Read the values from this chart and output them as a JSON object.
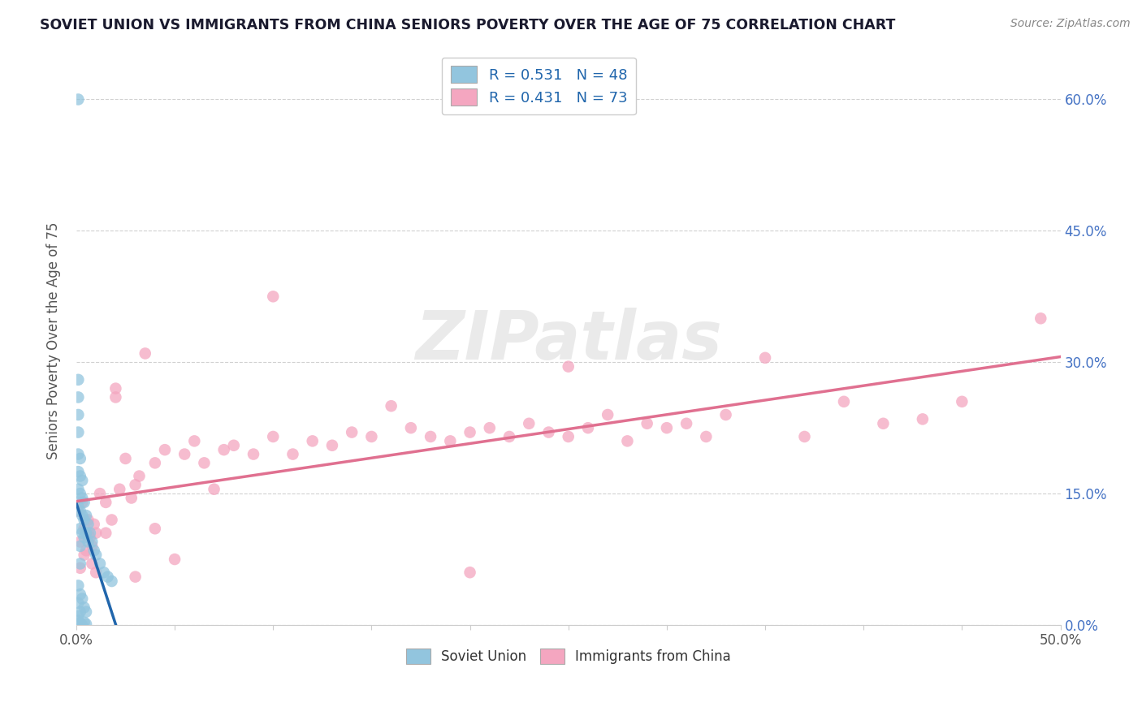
{
  "title": "SOVIET UNION VS IMMIGRANTS FROM CHINA SENIORS POVERTY OVER THE AGE OF 75 CORRELATION CHART",
  "source": "Source: ZipAtlas.com",
  "ylabel": "Seniors Poverty Over the Age of 75",
  "xlim": [
    0.0,
    0.5
  ],
  "ylim": [
    0.0,
    0.65
  ],
  "soviet_R": 0.531,
  "soviet_N": 48,
  "china_R": 0.431,
  "china_N": 73,
  "soviet_color": "#92c5de",
  "china_color": "#f4a6c0",
  "soviet_line_color": "#2166ac",
  "china_line_color": "#e07090",
  "background_color": "#ffffff",
  "soviet_x": [
    0.001,
    0.001,
    0.001,
    0.001,
    0.001,
    0.001,
    0.001,
    0.001,
    0.001,
    0.002,
    0.002,
    0.002,
    0.002,
    0.002,
    0.002,
    0.002,
    0.003,
    0.003,
    0.003,
    0.003,
    0.004,
    0.004,
    0.004,
    0.005,
    0.005,
    0.006,
    0.006,
    0.007,
    0.008,
    0.009,
    0.01,
    0.012,
    0.014,
    0.016,
    0.018,
    0.001,
    0.001,
    0.001,
    0.002,
    0.002,
    0.003,
    0.004,
    0.005,
    0.001,
    0.002,
    0.003,
    0.004,
    0.005
  ],
  "soviet_y": [
    0.6,
    0.28,
    0.26,
    0.24,
    0.22,
    0.195,
    0.175,
    0.155,
    0.135,
    0.19,
    0.17,
    0.15,
    0.13,
    0.11,
    0.09,
    0.07,
    0.165,
    0.145,
    0.125,
    0.105,
    0.14,
    0.12,
    0.1,
    0.125,
    0.105,
    0.115,
    0.095,
    0.105,
    0.095,
    0.085,
    0.08,
    0.07,
    0.06,
    0.055,
    0.05,
    0.045,
    0.025,
    0.01,
    0.035,
    0.015,
    0.03,
    0.02,
    0.015,
    0.005,
    0.002,
    0.0,
    0.003,
    0.001
  ],
  "china_x": [
    0.001,
    0.002,
    0.003,
    0.004,
    0.005,
    0.006,
    0.007,
    0.008,
    0.009,
    0.01,
    0.012,
    0.015,
    0.018,
    0.02,
    0.022,
    0.025,
    0.028,
    0.03,
    0.032,
    0.035,
    0.04,
    0.045,
    0.05,
    0.055,
    0.06,
    0.065,
    0.07,
    0.075,
    0.08,
    0.09,
    0.1,
    0.11,
    0.12,
    0.13,
    0.14,
    0.15,
    0.16,
    0.17,
    0.18,
    0.19,
    0.2,
    0.21,
    0.22,
    0.23,
    0.24,
    0.25,
    0.26,
    0.27,
    0.28,
    0.29,
    0.3,
    0.31,
    0.32,
    0.33,
    0.35,
    0.37,
    0.39,
    0.41,
    0.43,
    0.45,
    0.002,
    0.004,
    0.006,
    0.008,
    0.01,
    0.015,
    0.02,
    0.03,
    0.04,
    0.2,
    0.49,
    0.25,
    0.1
  ],
  "china_y": [
    0.13,
    0.095,
    0.14,
    0.11,
    0.085,
    0.12,
    0.1,
    0.09,
    0.115,
    0.105,
    0.15,
    0.14,
    0.12,
    0.27,
    0.155,
    0.19,
    0.145,
    0.16,
    0.17,
    0.31,
    0.185,
    0.2,
    0.075,
    0.195,
    0.21,
    0.185,
    0.155,
    0.2,
    0.205,
    0.195,
    0.215,
    0.195,
    0.21,
    0.205,
    0.22,
    0.215,
    0.25,
    0.225,
    0.215,
    0.21,
    0.22,
    0.225,
    0.215,
    0.23,
    0.22,
    0.215,
    0.225,
    0.24,
    0.21,
    0.23,
    0.225,
    0.23,
    0.215,
    0.24,
    0.305,
    0.215,
    0.255,
    0.23,
    0.235,
    0.255,
    0.065,
    0.08,
    0.105,
    0.07,
    0.06,
    0.105,
    0.26,
    0.055,
    0.11,
    0.06,
    0.35,
    0.295,
    0.375
  ]
}
